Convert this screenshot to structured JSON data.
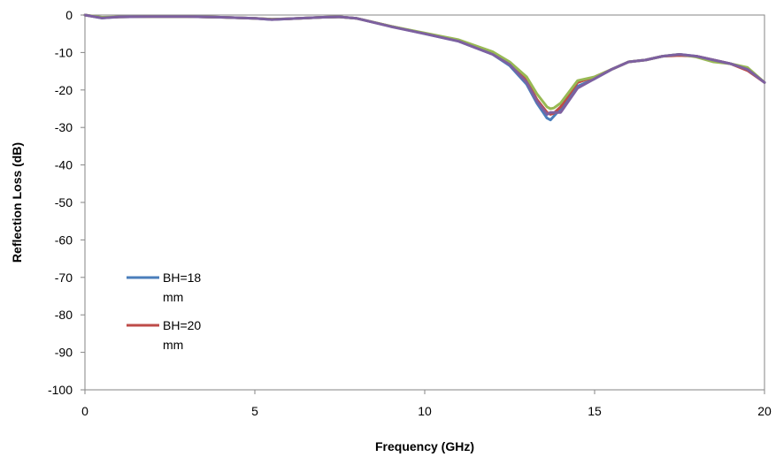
{
  "chart_data": {
    "type": "line",
    "title": "",
    "xlabel": "Frequency (GHz)",
    "ylabel": "Reflection Loss (dB)",
    "xlim": [
      0,
      20
    ],
    "ylim": [
      -100,
      0
    ],
    "xticks": [
      0,
      5,
      10,
      15,
      20
    ],
    "yticks": [
      0,
      -10,
      -20,
      -30,
      -40,
      -50,
      -60,
      -70,
      -80,
      -90,
      -100
    ],
    "grid": false,
    "legend_position": "bottom-left",
    "legend": [
      {
        "line1": "BH=18",
        "line2": "mm",
        "color": "#4a7ebb"
      },
      {
        "line1": "BH=20",
        "line2": "mm",
        "color": "#be4b48"
      }
    ],
    "series": [
      {
        "name": "BH=18 mm",
        "color": "#4a7ebb",
        "x": [
          0,
          0.5,
          1,
          2,
          3,
          4,
          5,
          5.5,
          6,
          7,
          7.5,
          8,
          9,
          10,
          11,
          12,
          12.5,
          13,
          13.3,
          13.6,
          13.7,
          13.8,
          14,
          14.5,
          15,
          15.5,
          16,
          16.5,
          17,
          17.5,
          18,
          18.5,
          19,
          19.5,
          20
        ],
        "y": [
          0,
          -0.8,
          -0.5,
          -0.4,
          -0.4,
          -0.6,
          -0.9,
          -1.2,
          -1.0,
          -0.6,
          -0.5,
          -0.9,
          -3.0,
          -5.0,
          -7.0,
          -10.5,
          -13.5,
          -18.5,
          -23.5,
          -27.5,
          -28.0,
          -27.0,
          -25.0,
          -19.0,
          -17.0,
          -14.5,
          -12.5,
          -12.0,
          -11.0,
          -10.5,
          -11.0,
          -12.0,
          -13.0,
          -14.5,
          -18.0
        ]
      },
      {
        "name": "BH=20 mm",
        "color": "#be4b48",
        "x": [
          0,
          0.5,
          1,
          2,
          3,
          4,
          5,
          5.5,
          6,
          7,
          7.5,
          8,
          9,
          10,
          11,
          12,
          12.5,
          13,
          13.3,
          13.6,
          13.7,
          13.8,
          14,
          14.5,
          15,
          15.5,
          16,
          16.5,
          17,
          17.5,
          18,
          18.5,
          19,
          19.5,
          20
        ],
        "y": [
          0,
          -0.7,
          -0.5,
          -0.4,
          -0.4,
          -0.6,
          -0.9,
          -1.1,
          -1.0,
          -0.6,
          -0.5,
          -0.9,
          -3.0,
          -4.9,
          -6.8,
          -10.0,
          -12.8,
          -17.5,
          -22.5,
          -26.0,
          -26.5,
          -26.2,
          -24.5,
          -18.0,
          -16.5,
          -14.5,
          -12.5,
          -12.0,
          -11.0,
          -10.8,
          -11.0,
          -12.0,
          -13.0,
          -14.8,
          -18.0
        ]
      },
      {
        "name": "",
        "color": "#98b954",
        "x": [
          0,
          0.5,
          1,
          2,
          3,
          4,
          5,
          5.5,
          6,
          7,
          7.5,
          8,
          9,
          10,
          11,
          12,
          12.5,
          13,
          13.3,
          13.6,
          13.7,
          13.8,
          14,
          14.5,
          15,
          15.5,
          16,
          16.5,
          17,
          17.5,
          18,
          18.5,
          19,
          19.5,
          20
        ],
        "y": [
          0,
          -0.6,
          -0.5,
          -0.4,
          -0.4,
          -0.6,
          -0.9,
          -1.1,
          -1.0,
          -0.6,
          -0.5,
          -0.9,
          -3.0,
          -4.8,
          -6.6,
          -9.8,
          -12.5,
          -16.5,
          -21.0,
          -24.5,
          -25.0,
          -24.8,
          -23.5,
          -17.5,
          -16.5,
          -14.5,
          -12.5,
          -12.0,
          -11.0,
          -10.5,
          -11.2,
          -12.5,
          -13.0,
          -14.0,
          -18.0
        ]
      },
      {
        "name": "",
        "color": "#7d60a0",
        "x": [
          0,
          0.5,
          1,
          2,
          3,
          4,
          5,
          5.5,
          6,
          7,
          7.5,
          8,
          9,
          10,
          11,
          12,
          12.5,
          13,
          13.3,
          13.6,
          13.7,
          13.8,
          14,
          14.5,
          15,
          15.5,
          16,
          16.5,
          17,
          17.5,
          18,
          18.5,
          19,
          19.5,
          20
        ],
        "y": [
          0,
          -0.8,
          -0.5,
          -0.4,
          -0.4,
          -0.6,
          -0.9,
          -1.2,
          -1.0,
          -0.6,
          -0.5,
          -0.9,
          -3.1,
          -5.0,
          -7.0,
          -10.5,
          -13.2,
          -18.0,
          -23.0,
          -26.5,
          -26.0,
          -26.0,
          -26.0,
          -19.5,
          -17.0,
          -14.5,
          -12.5,
          -12.0,
          -11.0,
          -10.5,
          -11.0,
          -12.0,
          -13.0,
          -14.5,
          -18.0
        ]
      }
    ]
  }
}
